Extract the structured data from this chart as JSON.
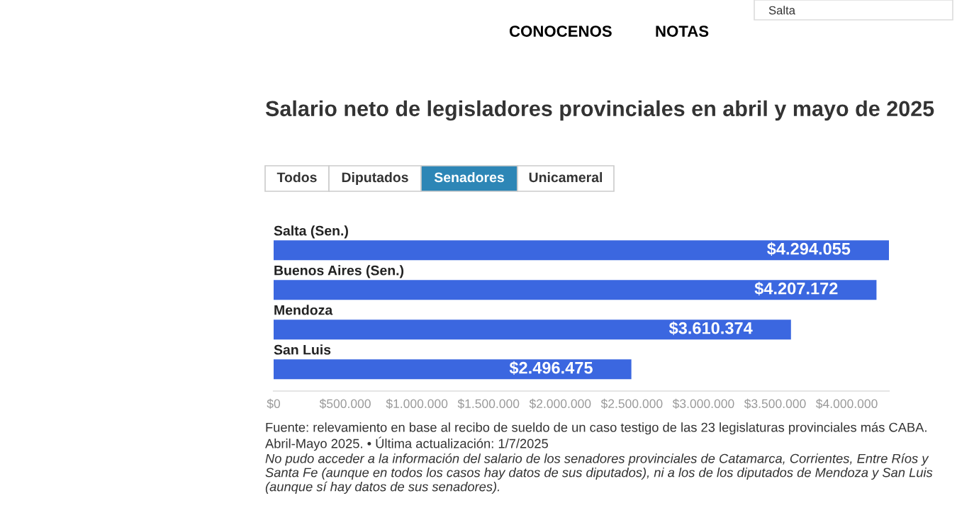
{
  "chart_data": {
    "type": "bar",
    "orientation": "horizontal",
    "title": "Salario neto de legisladores provinciales en abril y mayo de 2025",
    "categories": [
      "Salta (Sen.)",
      "Buenos Aires (Sen.)",
      "Mendoza",
      "San Luis"
    ],
    "values": [
      4294055,
      4207172,
      3610374,
      2496475
    ],
    "value_labels": [
      "$4.294.055",
      "$4.207.172",
      "$3.610.374",
      "$2.496.475"
    ],
    "color": "#3b67e0",
    "xlim": [
      0,
      4294055
    ],
    "xticks": [
      {
        "value": 0,
        "label": "$0"
      },
      {
        "value": 500000,
        "label": "$500.000"
      },
      {
        "value": 1000000,
        "label": "$1.000.000"
      },
      {
        "value": 1500000,
        "label": "$1.500.000"
      },
      {
        "value": 2000000,
        "label": "$2.000.000"
      },
      {
        "value": 2500000,
        "label": "$2.500.000"
      },
      {
        "value": 3000000,
        "label": "$3.000.000"
      },
      {
        "value": 3500000,
        "label": "$3.500.000"
      },
      {
        "value": 4000000,
        "label": "$4.000.000"
      }
    ],
    "grid": false,
    "legend": false,
    "annotations": [
      "CONOCENOS",
      "NOTAS",
      "Salta",
      "Todos",
      "Diputados",
      "Senadores",
      "Unicameral",
      "Fuente: relevamiento en base al recibo de sueldo de un caso testigo de las 23 legislaturas provinciales más CABA. Abril-Mayo 2025. • Última actualización: 1/7/2025",
      "No pudo acceder a la información del salario de los senadores provinciales de Catamarca, Corrientes, Entre Ríos y Santa Fe (aunque en todos los casos hay datos de sus diputados), ni a los de los diputados de Mendoza y San Luis (aunque sí hay datos de sus senadores)."
    ]
  }
}
